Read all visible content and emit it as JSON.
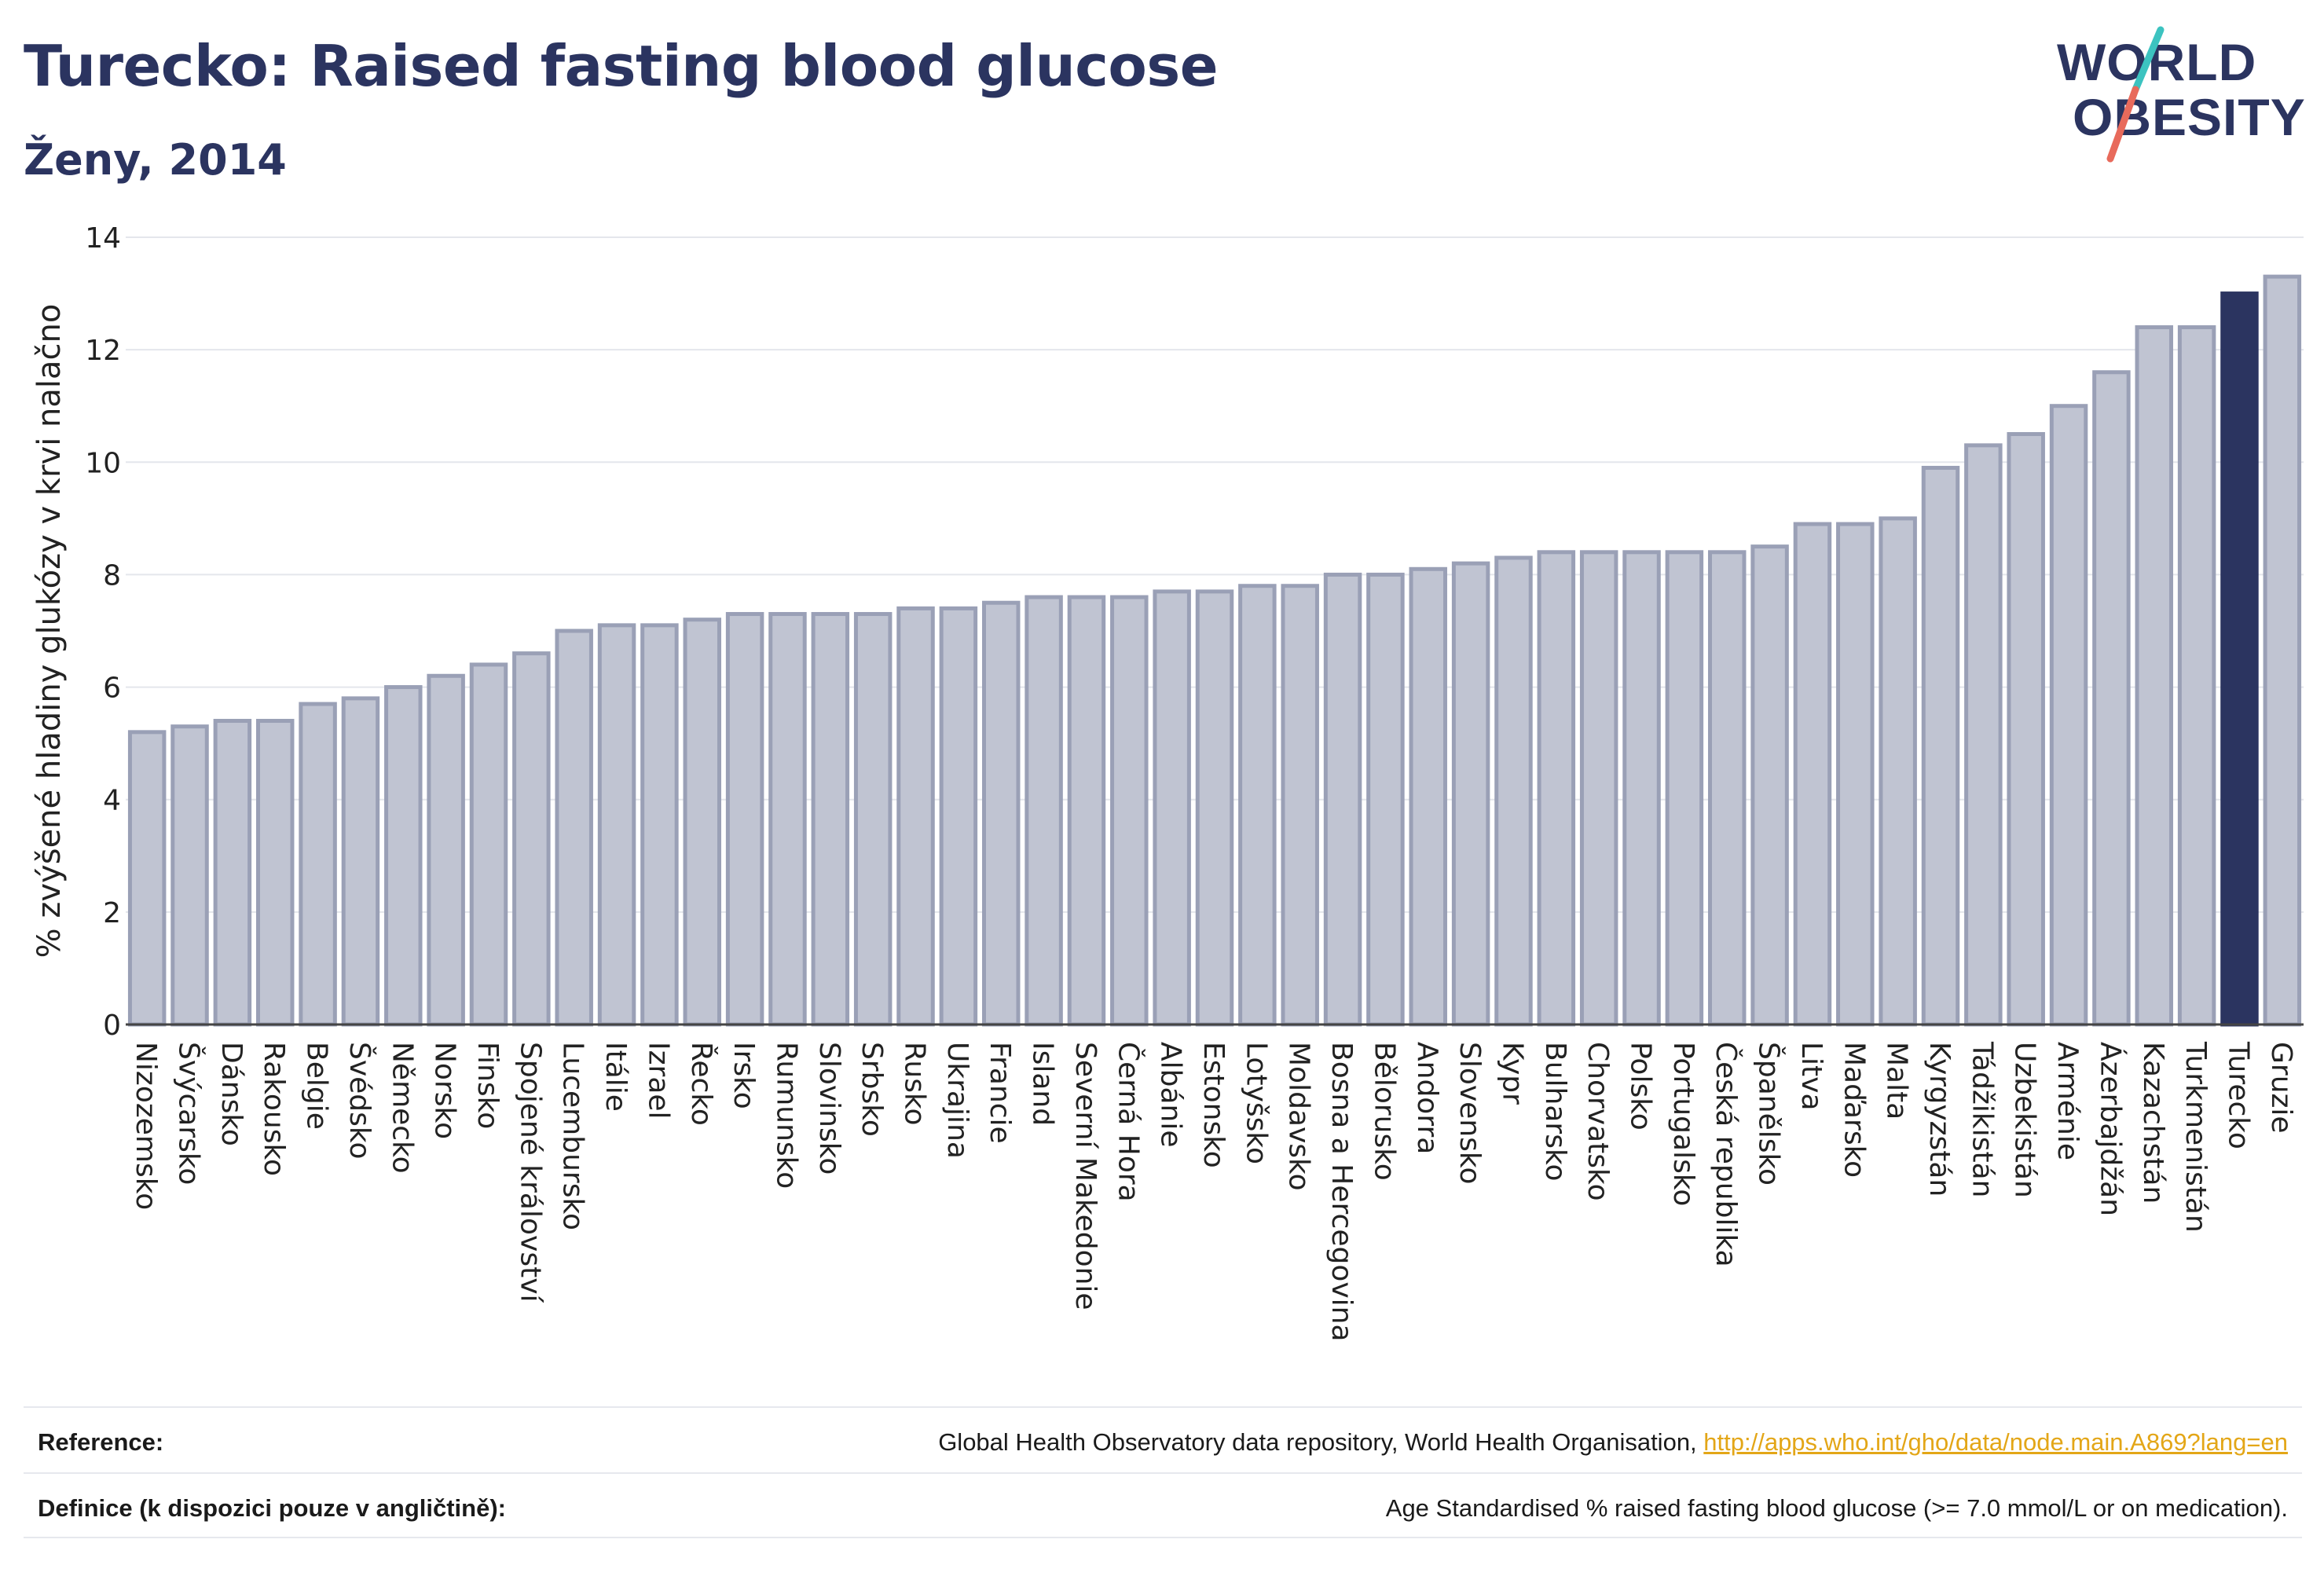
{
  "header": {
    "title": "Turecko: Raised fasting blood glucose",
    "subtitle": "Ženy, 2014",
    "logo_line1": "WORLD",
    "logo_line2": "OBESITY"
  },
  "colors": {
    "title": "#2b3460",
    "bar_default": "#c0c4d2",
    "bar_default_stroke": "#9aa0b6",
    "bar_highlight": "#2b3460",
    "logo_teal": "#3cc3c0",
    "logo_coral": "#e86a5b",
    "link": "#e3a617"
  },
  "chart_data": {
    "type": "bar",
    "title": "Turecko: Raised fasting blood glucose",
    "subtitle": "Ženy, 2014",
    "ylabel": "% zvýšené hladiny glukózy v krvi nalačno",
    "xlabel": "",
    "ylim": [
      0,
      14
    ],
    "yticks": [
      0,
      2,
      4,
      6,
      8,
      10,
      12,
      14
    ],
    "grid": true,
    "highlight": "Turecko",
    "categories": [
      "Nizozemsko",
      "Švýcarsko",
      "Dánsko",
      "Rakousko",
      "Belgie",
      "Švédsko",
      "Německo",
      "Norsko",
      "Finsko",
      "Spojené království",
      "Lucembursko",
      "Itálie",
      "Izrael",
      "Řecko",
      "Irsko",
      "Rumunsko",
      "Slovinsko",
      "Srbsko",
      "Rusko",
      "Ukrajina",
      "Francie",
      "Island",
      "Severní Makedonie",
      "Černá Hora",
      "Albánie",
      "Estonsko",
      "Lotyšsko",
      "Moldavsko",
      "Bosna a Hercegovina",
      "Bělorusko",
      "Andorra",
      "Slovensko",
      "Kypr",
      "Bulharsko",
      "Chorvatsko",
      "Polsko",
      "Portugalsko",
      "Česká republika",
      "Španělsko",
      "Litva",
      "Maďarsko",
      "Malta",
      "Kyrgyzstán",
      "Tádžikistán",
      "Uzbekistán",
      "Arménie",
      "Ázerbajdžán",
      "Kazachstán",
      "Turkmenistán",
      "Turecko",
      "Gruzie"
    ],
    "values": [
      5.2,
      5.3,
      5.4,
      5.4,
      5.7,
      5.8,
      6.0,
      6.2,
      6.4,
      6.6,
      7.0,
      7.1,
      7.1,
      7.2,
      7.3,
      7.3,
      7.3,
      7.3,
      7.4,
      7.4,
      7.5,
      7.6,
      7.6,
      7.6,
      7.7,
      7.7,
      7.8,
      7.8,
      8.0,
      8.0,
      8.1,
      8.2,
      8.3,
      8.4,
      8.4,
      8.4,
      8.4,
      8.4,
      8.5,
      8.9,
      8.9,
      9.0,
      9.9,
      10.3,
      10.5,
      11.0,
      11.6,
      12.4,
      12.4,
      13.0,
      13.3
    ]
  },
  "footer": {
    "reference_label": "Reference:",
    "reference_text": "Global Health Observatory data repository, World Health Organisation, ",
    "reference_link": "http://apps.who.int/gho/data/node.main.A869?lang=en",
    "definition_label": "Definice (k dispozici pouze v angličtině):",
    "definition_text": "Age Standardised % raised fasting blood glucose (>= 7.0 mmol/L or on medication)."
  }
}
